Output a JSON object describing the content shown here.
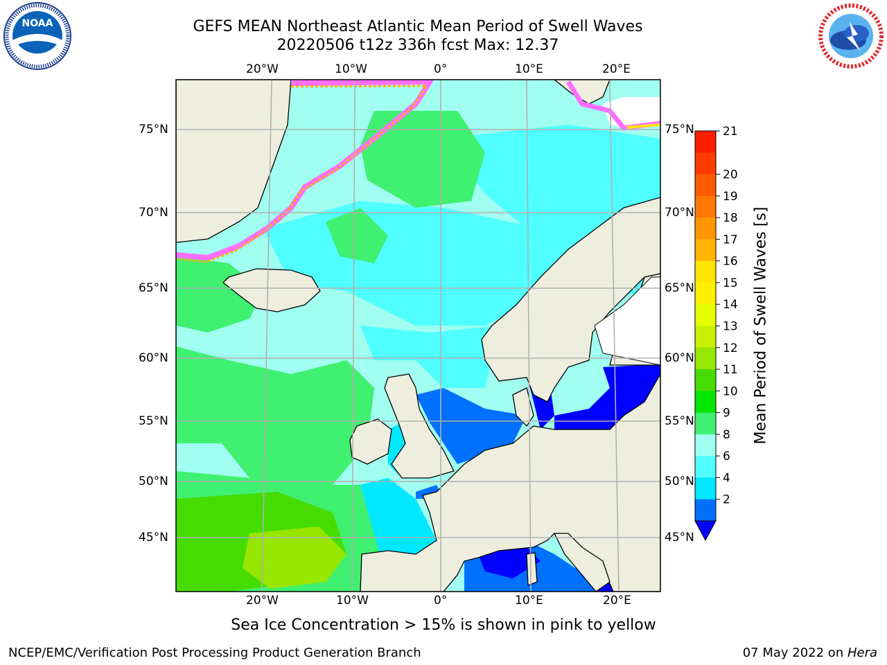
{
  "header": {
    "title_line1": "GEFS MEAN Northeast Atlantic Mean Period of Swell Waves",
    "title_line2": "20220506 t12z 336h fcst   Max: 12.37"
  },
  "logos": {
    "noaa": {
      "text": "NOAA",
      "ring_text": "NATIONAL OCEANIC AND ATMOSPHERIC ADMINISTRATION · U.S. DEPARTMENT OF COMMERCE"
    },
    "nws": {
      "ring_text": "NATIONAL WEATHER SERVICE"
    }
  },
  "map": {
    "lon_labels": [
      "20°W",
      "10°W",
      "0°",
      "10°E",
      "20°E"
    ],
    "lat_labels": [
      "75°N",
      "70°N",
      "65°N",
      "60°N",
      "55°N",
      "50°N",
      "45°N"
    ],
    "gridlines": true
  },
  "colorbar": {
    "title": "Mean Period of Swell Waves [s]",
    "ticks": [
      "21",
      "20",
      "19",
      "18",
      "17",
      "16",
      "15",
      "14",
      "13",
      "12",
      "11",
      "10",
      "9",
      "8",
      "6",
      "4",
      "2"
    ],
    "colors": [
      "#ff1e00",
      "#ff3c00",
      "#ff5a00",
      "#ff7800",
      "#ff9600",
      "#ffb400",
      "#ffe600",
      "#fff000",
      "#e6ff00",
      "#c8f000",
      "#96e600",
      "#46dc00",
      "#00e600",
      "#40f070",
      "#a0fff0",
      "#50ffff",
      "#00e8ff",
      "#0070ff"
    ],
    "extend_below_color": "#0000ff"
  },
  "caption": "Sea Ice Concentration > 15% is shown in pink to yellow",
  "footer": {
    "left": "NCEP/EMC/Verification Post Processing Product Generation Branch",
    "right_prefix": "07 May 2022 on ",
    "right_italic": "Hera"
  }
}
